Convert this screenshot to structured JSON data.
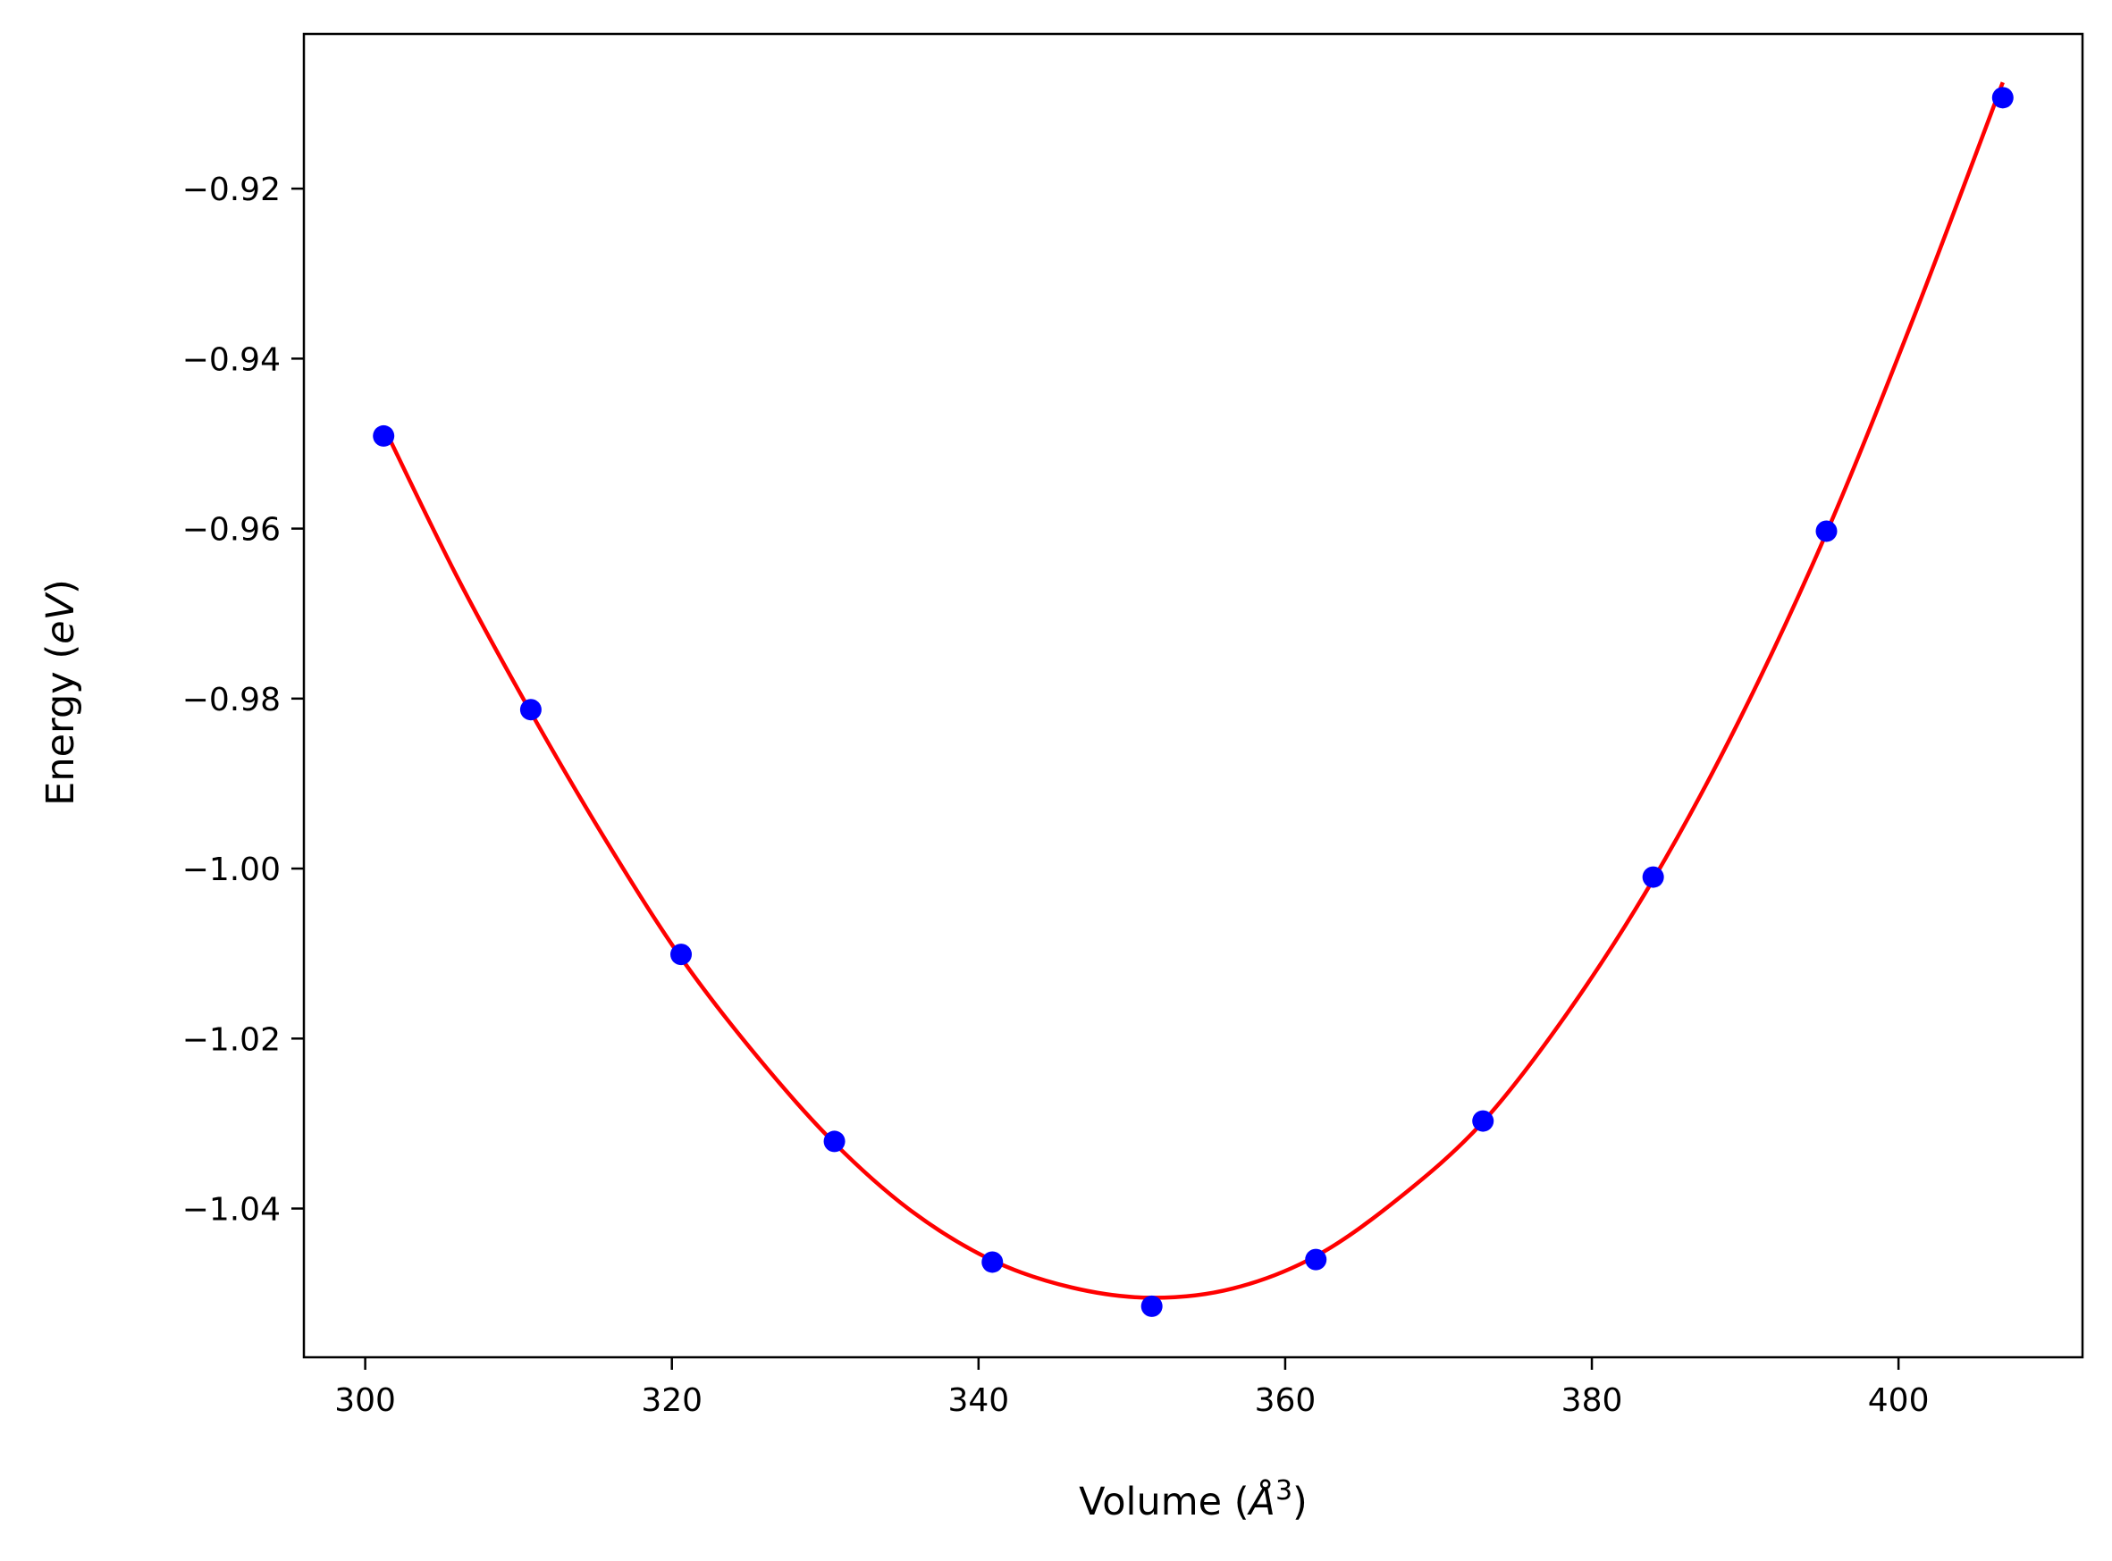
{
  "chart_data": {
    "type": "scatter",
    "title": "",
    "xlabel": "Volume (Å³)",
    "xlabel_parts": {
      "text": "Volume (",
      "italic": "Å",
      "sup": "3",
      "close": ")"
    },
    "ylabel": "Energy (eV)",
    "ylabel_parts": {
      "text": "Energy (",
      "italic": "eV",
      "close": ")"
    },
    "xlim": [
      296,
      412
    ],
    "ylim": [
      -1.0575,
      -0.9018
    ],
    "x_ticks": [
      300,
      320,
      340,
      360,
      380,
      400
    ],
    "x_tick_labels": [
      "300",
      "320",
      "340",
      "360",
      "380",
      "400"
    ],
    "y_ticks": [
      -0.92,
      -0.94,
      -0.96,
      -0.98,
      -1.0,
      -1.02,
      -1.04
    ],
    "y_tick_labels": [
      "−0.92",
      "−0.94",
      "−0.96",
      "−0.98",
      "−1.00",
      "−1.02",
      "−1.04"
    ],
    "grid": false,
    "legend": "none",
    "series": [
      {
        "kind": "points",
        "color": "#0000ff",
        "x": [
          301.2,
          310.8,
          320.6,
          330.6,
          340.9,
          351.3,
          362.0,
          372.9,
          384.0,
          395.3,
          406.8
        ],
        "y": [
          -0.9491,
          -0.9813,
          -1.0101,
          -1.0321,
          -1.0463,
          -1.0515,
          -1.046,
          -1.0297,
          -1.001,
          -0.9603,
          -0.9093
        ]
      },
      {
        "kind": "fit-curve",
        "color": "#ff0000",
        "x": [
          301.2,
          306.0,
          310.8,
          315.7,
          320.6,
          325.6,
          330.6,
          335.7,
          340.9,
          346.1,
          351.3,
          356.6,
          362.0,
          367.4,
          372.9,
          378.4,
          384.0,
          389.6,
          395.3,
          401.0,
          406.8
        ],
        "y": [
          -0.948,
          -0.9657,
          -0.9816,
          -0.9967,
          -1.0105,
          -1.0222,
          -1.0323,
          -1.0404,
          -1.0461,
          -1.0493,
          -1.0505,
          -1.0494,
          -1.0456,
          -1.0388,
          -1.0298,
          -1.017,
          -1.0013,
          -0.9826,
          -0.9605,
          -0.9351,
          -0.9075
        ]
      }
    ]
  }
}
